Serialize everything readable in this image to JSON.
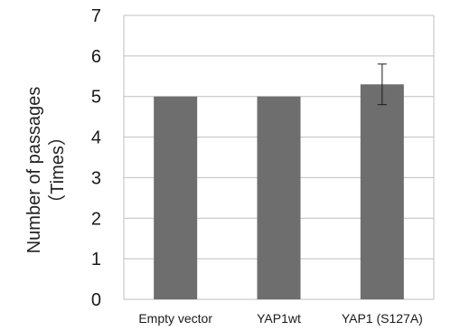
{
  "chart_data": {
    "type": "bar",
    "categories": [
      "Empty vector",
      "YAP1wt",
      "YAP1 (S127A)"
    ],
    "values": [
      5,
      5,
      5.3
    ],
    "errors": [
      0,
      0,
      0.5
    ],
    "title": "",
    "xlabel": "",
    "ylabel": "Number of passages",
    "ylabel_unit": "（Times）",
    "ylim": [
      0,
      7
    ],
    "yticks": [
      "0",
      "1",
      "2",
      "3",
      "4",
      "5",
      "6",
      "7"
    ],
    "grid": true,
    "bar_color": "#6e6e6e",
    "grid_color": "#bfbfbf"
  }
}
